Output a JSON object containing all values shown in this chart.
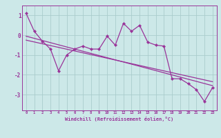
{
  "x": [
    0,
    1,
    2,
    3,
    4,
    5,
    6,
    7,
    8,
    9,
    10,
    11,
    12,
    13,
    14,
    15,
    16,
    17,
    18,
    19,
    20,
    21,
    22,
    23
  ],
  "y_main": [
    1.1,
    0.2,
    -0.3,
    -0.7,
    -1.8,
    -1.0,
    -0.7,
    -0.55,
    -0.7,
    -0.7,
    -0.05,
    -0.5,
    0.6,
    0.2,
    0.5,
    -0.35,
    -0.5,
    -0.55,
    -2.2,
    -2.2,
    -2.45,
    -2.75,
    -3.35,
    -2.65
  ],
  "trend1_x": [
    0,
    23
  ],
  "trend1_y": [
    -0.25,
    -2.35
  ],
  "trend2_x": [
    0,
    23
  ],
  "trend2_y": [
    -0.05,
    -2.55
  ],
  "line_color": "#993399",
  "bg_color": "#cce8e8",
  "grid_color": "#aacccc",
  "ylabel_values": [
    1,
    0,
    -1,
    -2,
    -3
  ],
  "xlabel_values": [
    0,
    1,
    2,
    3,
    4,
    5,
    6,
    7,
    8,
    9,
    10,
    11,
    12,
    13,
    14,
    15,
    16,
    17,
    18,
    19,
    20,
    21,
    22,
    23
  ],
  "xlabel": "Windchill (Refroidissement éolien,°C)",
  "ylim": [
    -3.8,
    1.5
  ],
  "xlim": [
    -0.5,
    23.5
  ]
}
